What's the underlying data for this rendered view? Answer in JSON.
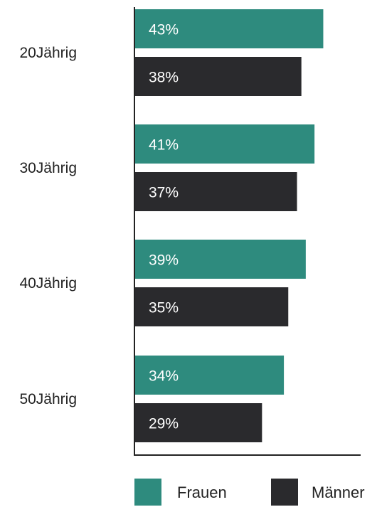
{
  "chart_data": {
    "type": "bar",
    "orientation": "horizontal",
    "categories": [
      "20Jährig",
      "30Jährig",
      "40Jährig",
      "50Jährig"
    ],
    "series": [
      {
        "name": "Frauen",
        "values": [
          43,
          41,
          39,
          34
        ],
        "labels": [
          "43%",
          "41%",
          "39%",
          "34%"
        ],
        "color": "#2e8b7e"
      },
      {
        "name": "Männer",
        "values": [
          38,
          37,
          35,
          29
        ],
        "labels": [
          "38%",
          "37%",
          "35%",
          "29%"
        ],
        "color": "#2a2a2d"
      }
    ],
    "xlim": [
      0,
      52
    ],
    "unit": "%",
    "grid": false,
    "legend_position": "bottom"
  }
}
